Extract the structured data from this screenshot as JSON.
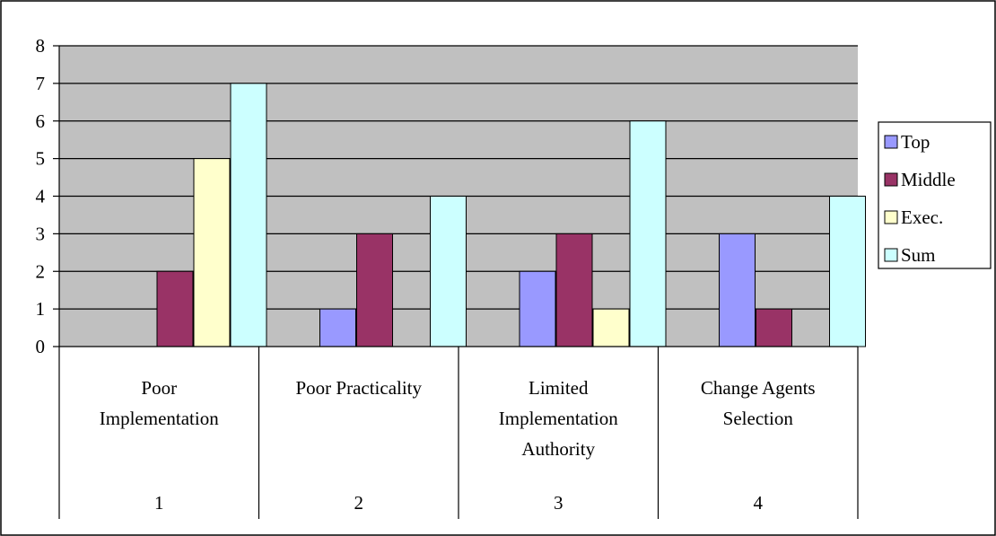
{
  "chart_data": {
    "type": "bar",
    "title": "",
    "xlabel": "",
    "ylabel": "",
    "ylim": [
      0,
      8
    ],
    "yticks": [
      0,
      1,
      2,
      3,
      4,
      5,
      6,
      7,
      8
    ],
    "grid": true,
    "legend_position": "right",
    "categories": [
      {
        "label": "Poor Implementation",
        "lines": [
          "Poor",
          "Implementation"
        ],
        "number": "1"
      },
      {
        "label": "Poor Practicality",
        "lines": [
          "Poor Practicality"
        ],
        "number": "2"
      },
      {
        "label": "Limited Implementation Authority",
        "lines": [
          "Limited",
          "Implementation",
          "Authority"
        ],
        "number": "3"
      },
      {
        "label": "Change Agents Selection",
        "lines": [
          "Change Agents",
          "Selection"
        ],
        "number": "4"
      }
    ],
    "series": [
      {
        "name": "Top",
        "color": "#9999ff",
        "values": [
          0,
          1,
          2,
          3
        ]
      },
      {
        "name": "Middle",
        "color": "#993366",
        "values": [
          2,
          3,
          3,
          1
        ]
      },
      {
        "name": "Exec.",
        "color": "#ffffcc",
        "values": [
          5,
          0,
          1,
          0
        ]
      },
      {
        "name": "Sum",
        "color": "#ccffff",
        "values": [
          7,
          4,
          6,
          4
        ]
      }
    ],
    "colors": {
      "plot_background": "#c0c0c0",
      "gridline": "#000000"
    }
  }
}
